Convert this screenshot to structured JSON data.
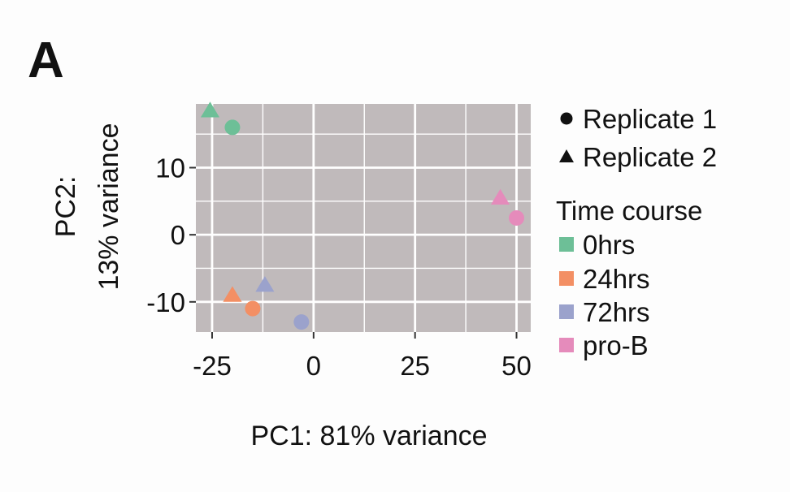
{
  "panel_label": "A",
  "chart_data": {
    "type": "scatter",
    "xlabel": "PC1: 81% variance",
    "ylabel_lines": [
      "PC2:",
      "13% variance"
    ],
    "xlim": [
      -29,
      53.5
    ],
    "ylim": [
      -14.5,
      19.5
    ],
    "x_ticks": [
      -25,
      0,
      25,
      50
    ],
    "x_tick_labels": [
      "-25",
      "0",
      "25",
      "50"
    ],
    "y_ticks": [
      -10,
      0,
      10
    ],
    "y_tick_labels": [
      "-10",
      "0",
      "10"
    ],
    "grid": true,
    "background": "#c0babb",
    "grid_color": "#ffffff",
    "legend_position": "right",
    "shape_legend": {
      "entries": [
        {
          "label": "Replicate 1",
          "shape": "circle"
        },
        {
          "label": "Replicate 2",
          "shape": "triangle"
        }
      ]
    },
    "color_legend": {
      "title": "Time course",
      "entries": [
        {
          "label": "0hrs",
          "color": "#6dbf97"
        },
        {
          "label": "24hrs",
          "color": "#f38f64"
        },
        {
          "label": "72hrs",
          "color": "#9ba2cc"
        },
        {
          "label": "pro-B",
          "color": "#e58bbb"
        }
      ]
    },
    "points": [
      {
        "group": "0hrs",
        "replicate": "Replicate 1",
        "shape": "circle",
        "x": -20,
        "y": 16
      },
      {
        "group": "0hrs",
        "replicate": "Replicate 2",
        "shape": "triangle",
        "x": -25.5,
        "y": 18.5
      },
      {
        "group": "24hrs",
        "replicate": "Replicate 1",
        "shape": "circle",
        "x": -15,
        "y": -11
      },
      {
        "group": "24hrs",
        "replicate": "Replicate 2",
        "shape": "triangle",
        "x": -20,
        "y": -9
      },
      {
        "group": "72hrs",
        "replicate": "Replicate 1",
        "shape": "circle",
        "x": -3,
        "y": -13
      },
      {
        "group": "72hrs",
        "replicate": "Replicate 2",
        "shape": "triangle",
        "x": -12,
        "y": -7.5
      },
      {
        "group": "pro-B",
        "replicate": "Replicate 1",
        "shape": "circle",
        "x": 50,
        "y": 2.5
      },
      {
        "group": "pro-B",
        "replicate": "Replicate 2",
        "shape": "triangle",
        "x": 46,
        "y": 5.5
      }
    ]
  }
}
